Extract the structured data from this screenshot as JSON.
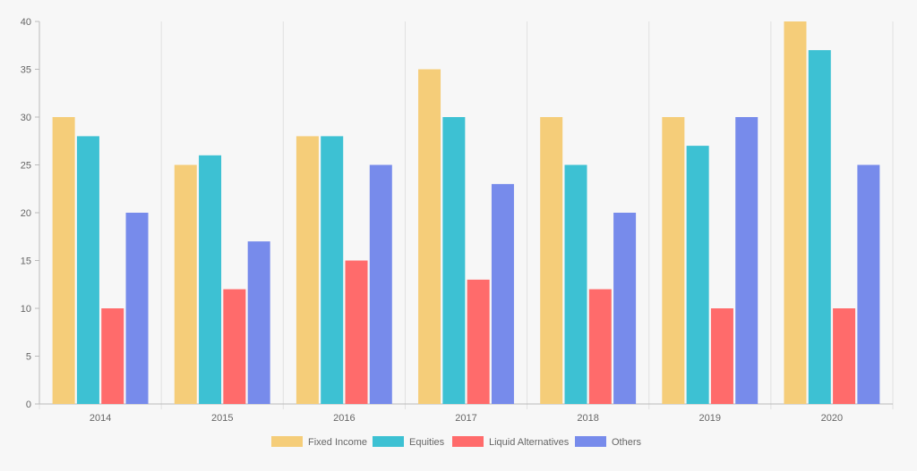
{
  "chart_data": {
    "type": "bar",
    "title": "",
    "xlabel": "",
    "ylabel": "",
    "categories": [
      "2014",
      "2015",
      "2016",
      "2017",
      "2018",
      "2019",
      "2020"
    ],
    "ylim": [
      0,
      40
    ],
    "yticks": [
      "0",
      "5",
      "10",
      "15",
      "20",
      "25",
      "30",
      "35",
      "40"
    ],
    "grid": "vertical category separators",
    "legend_position": "bottom",
    "series": [
      {
        "name": "Fixed Income",
        "color": "#f5cd79",
        "values": [
          30,
          25,
          28,
          35,
          30,
          30,
          40
        ]
      },
      {
        "name": "Equities",
        "color": "#3dc1d3",
        "values": [
          28,
          26,
          28,
          30,
          25,
          27,
          37
        ]
      },
      {
        "name": "Liquid Alternatives",
        "color": "#ff6b6b",
        "values": [
          10,
          12,
          15,
          13,
          12,
          10,
          10
        ]
      },
      {
        "name": "Others",
        "color": "#778beb",
        "values": [
          20,
          17,
          25,
          23,
          20,
          30,
          25
        ]
      }
    ]
  }
}
